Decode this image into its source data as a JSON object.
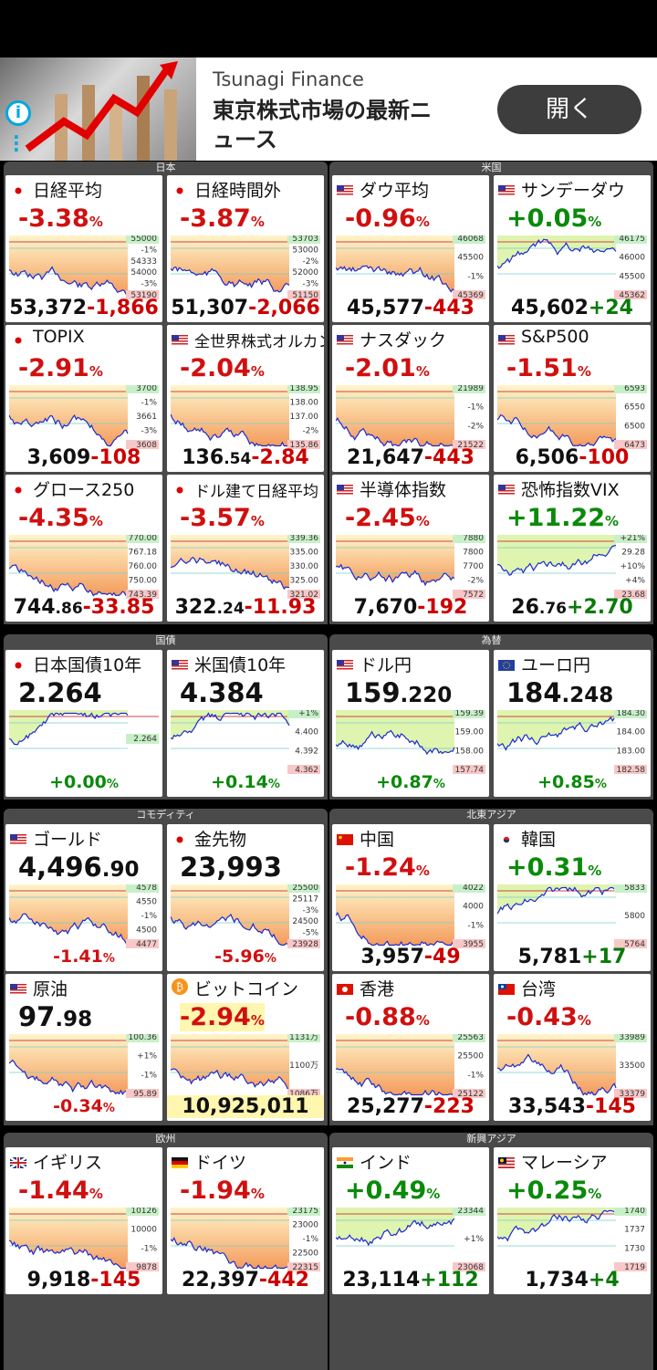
{
  "ad": {
    "brand": "Tsunagi Finance",
    "text": "東京株式市場の最新ニュース",
    "button": "開く"
  },
  "colors": {
    "down": "#d01010",
    "up": "#0a8a0a",
    "panel": "#4a4a4a"
  },
  "groups": [
    {
      "label": "日本"
    },
    {
      "label": "米国"
    },
    {
      "label": "国債"
    },
    {
      "label": "為替"
    },
    {
      "label": "コモディティ"
    },
    {
      "label": "北東アジア"
    },
    {
      "label": "欧州"
    },
    {
      "label": "新興アジア"
    }
  ],
  "tiles": [
    {
      "name": "日経平均",
      "flag": "jp",
      "pct": "-3.38",
      "dir": "down",
      "price": "53,372",
      "pdec": "",
      "chg": "-1,866",
      "y": [
        "55000",
        "-1%",
        "54333",
        "54000",
        "-3%",
        "53190"
      ]
    },
    {
      "name": "日経時間外",
      "flag": "jp",
      "pct": "-3.87",
      "dir": "down",
      "price": "51,307",
      "pdec": "",
      "chg": "-2,066",
      "y": [
        "53703",
        "53000",
        "-2%",
        "52000",
        "-3%",
        "51150"
      ]
    },
    {
      "name": "ダウ平均",
      "flag": "us",
      "pct": "-0.96",
      "dir": "down",
      "price": "45,577",
      "pdec": "",
      "chg": "-443",
      "y": [
        "46068",
        "45500",
        "-1%",
        "45369"
      ]
    },
    {
      "name": "サンデーダウ",
      "flag": "us",
      "pct": "+0.05",
      "dir": "up",
      "price": "45,602",
      "pdec": "",
      "chg": "+24",
      "y": [
        "46175",
        "46000",
        "45500",
        "45362"
      ]
    },
    {
      "name": "TOPIX",
      "flag": "jp",
      "pct": "-2.91",
      "dir": "down",
      "price": "3,609",
      "pdec": "",
      "chg": "-108",
      "y": [
        "3700",
        "-1%",
        "3661",
        "-3%",
        "3608"
      ]
    },
    {
      "name": "全世界株式オルカン",
      "flag": "us",
      "pct": "-2.04",
      "dir": "down",
      "price": "136",
      "pdec": ".54",
      "chg": "-2.84",
      "y": [
        "138.95",
        "138.00",
        "137.00",
        "-2%",
        "135.86"
      ]
    },
    {
      "name": "ナスダック",
      "flag": "us",
      "pct": "-2.01",
      "dir": "down",
      "price": "21,647",
      "pdec": "",
      "chg": "-443",
      "y": [
        "21989",
        "-1%",
        "-2%",
        "21522"
      ]
    },
    {
      "name": "S&P500",
      "flag": "us",
      "pct": "-1.51",
      "dir": "down",
      "price": "6,506",
      "pdec": "",
      "chg": "-100",
      "y": [
        "6593",
        "6550",
        "6500",
        "6473"
      ]
    },
    {
      "name": "グロース250",
      "flag": "jp",
      "pct": "-4.35",
      "dir": "down",
      "price": "744",
      "pdec": ".86",
      "chg": "-33.85",
      "y": [
        "770.00",
        "767.18",
        "760.00",
        "750.00",
        "743.39"
      ]
    },
    {
      "name": "ドル建て日経平均",
      "flag": "jp",
      "pct": "-3.57",
      "dir": "down",
      "price": "322",
      "pdec": ".24",
      "chg": "-11.93",
      "y": [
        "339.36",
        "335.00",
        "330.00",
        "325.00",
        "321.02"
      ]
    },
    {
      "name": "半導体指数",
      "flag": "us",
      "pct": "-2.45",
      "dir": "down",
      "price": "7,670",
      "pdec": "",
      "chg": "-192",
      "y": [
        "7880",
        "7800",
        "7700",
        "-2%",
        "7572"
      ]
    },
    {
      "name": "恐怖指数VIX",
      "flag": "us",
      "pct": "+11.22",
      "dir": "updown",
      "price": "26",
      "pdec": ".76",
      "chg": "+2.70",
      "y": [
        "+21%",
        "29.28",
        "+10%",
        "+4%",
        "23.68"
      ]
    },
    {
      "name": "日本国債10年",
      "flag": "jp",
      "value": "2.264",
      "pct": "+0.00",
      "dir": "up",
      "y": [
        "2.264"
      ]
    },
    {
      "name": "米国債10年",
      "flag": "us",
      "value": "4.384",
      "pct": "+0.14",
      "dir": "up",
      "y": [
        "+1%",
        "4.400",
        "4.392",
        "4.362"
      ]
    },
    {
      "name": "ドル円",
      "flag": "us",
      "value": "159",
      "vdec": ".220",
      "pct": "+0.87",
      "dir": "up",
      "y": [
        "159.39",
        "159.00",
        "158.00",
        "157.74"
      ]
    },
    {
      "name": "ユーロ円",
      "flag": "eu",
      "value": "184",
      "vdec": ".248",
      "pct": "+0.85",
      "dir": "up",
      "y": [
        "184.30",
        "184.00",
        "183.00",
        "182.58"
      ]
    },
    {
      "name": "ゴールド",
      "flag": "us",
      "value": "4,496",
      "vdec": ".90",
      "pct": "-1.41",
      "dir": "down",
      "y": [
        "4578",
        "4550",
        "-1%",
        "4500",
        "4477"
      ]
    },
    {
      "name": "金先物",
      "flag": "jp",
      "value": "23,993",
      "vdec": "",
      "pct": "-5.96",
      "dir": "down",
      "y": [
        "25500",
        "25117",
        "-3%",
        "24500",
        "-5%",
        "23928"
      ]
    },
    {
      "name": "中国",
      "flag": "cn",
      "pct": "-1.24",
      "dir": "down",
      "price": "3,957",
      "pdec": "",
      "chg": "-49",
      "y": [
        "4022",
        "4000",
        "-1%",
        "3955"
      ]
    },
    {
      "name": "韓国",
      "flag": "kr",
      "pct": "+0.31",
      "dir": "up",
      "price": "5,781",
      "pdec": "",
      "chg": "+17",
      "y": [
        "5833",
        "5800",
        "5764"
      ]
    },
    {
      "name": "原油",
      "flag": "us",
      "value": "97",
      "vdec": ".98",
      "pct": "-0.34",
      "dir": "down",
      "y": [
        "100.36",
        "+1%",
        "-1%",
        "95.89"
      ]
    },
    {
      "name": "ビットコイン",
      "flag": "btc",
      "pct": "-2.94",
      "dir": "down",
      "price": "10,925,011",
      "pdec": "",
      "chg": "",
      "y": [
        "1131万",
        "1100万",
        "1086万"
      ]
    },
    {
      "name": "香港",
      "flag": "hk",
      "pct": "-0.88",
      "dir": "down",
      "price": "25,277",
      "pdec": "",
      "chg": "-223",
      "y": [
        "25563",
        "25500",
        "-1%",
        "25122"
      ]
    },
    {
      "name": "台湾",
      "flag": "tw",
      "pct": "-0.43",
      "dir": "down",
      "price": "33,543",
      "pdec": "",
      "chg": "-145",
      "y": [
        "33989",
        "33500",
        "33379"
      ]
    },
    {
      "name": "イギリス",
      "flag": "gb",
      "pct": "-1.44",
      "dir": "down",
      "price": "9,918",
      "pdec": "",
      "chg": "-145",
      "y": [
        "10126",
        "10000",
        "-1%",
        "9878"
      ]
    },
    {
      "name": "ドイツ",
      "flag": "de",
      "pct": "-1.94",
      "dir": "down",
      "price": "22,397",
      "pdec": "",
      "chg": "-442",
      "y": [
        "23175",
        "23000",
        "-1%",
        "22500",
        "22315"
      ]
    },
    {
      "name": "インド",
      "flag": "in",
      "pct": "+0.49",
      "dir": "up",
      "price": "23,114",
      "pdec": "",
      "chg": "+112",
      "y": [
        "23344",
        "+1%",
        "23068"
      ]
    },
    {
      "name": "マレーシア",
      "flag": "my",
      "pct": "+0.25",
      "dir": "up",
      "price": "1,734",
      "pdec": "",
      "chg": "+4",
      "y": [
        "1740",
        "1737",
        "1730",
        "1719"
      ]
    }
  ]
}
